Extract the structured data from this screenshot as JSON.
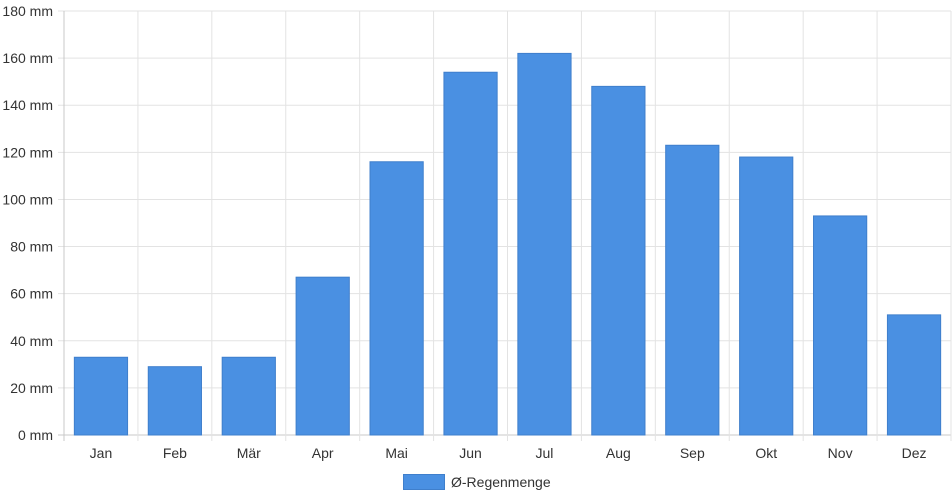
{
  "chart_data": {
    "type": "bar",
    "categories": [
      "Jan",
      "Feb",
      "Mär",
      "Apr",
      "Mai",
      "Jun",
      "Jul",
      "Aug",
      "Sep",
      "Okt",
      "Nov",
      "Dez"
    ],
    "series": [
      {
        "name": "Ø-Regenmenge",
        "values": [
          33,
          29,
          33,
          67,
          116,
          154,
          162,
          148,
          123,
          118,
          93,
          51
        ]
      }
    ],
    "y_unit": "mm",
    "y_ticks": [
      "0 mm",
      "20 mm",
      "40 mm",
      "60 mm",
      "80 mm",
      "100 mm",
      "120 mm",
      "140 mm",
      "160 mm",
      "180 mm"
    ],
    "ylim": [
      0,
      180
    ],
    "grid": true,
    "legend_position": "bottom",
    "colors": {
      "bar": "#4a90e2",
      "bar_border": "#3f7fcc",
      "grid": "#e3e3e3",
      "axis": "#c8c8c8"
    }
  }
}
